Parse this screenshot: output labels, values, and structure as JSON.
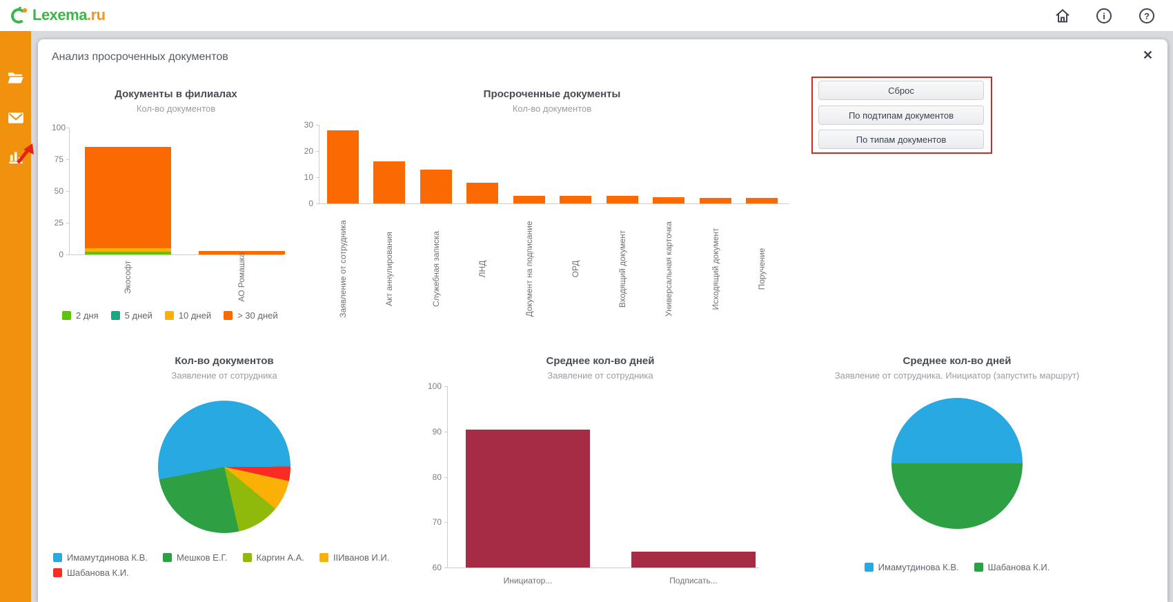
{
  "topbar": {
    "logo": {
      "text_primary": "Lexema",
      "text_suffix": ".ru"
    },
    "icons": {
      "info_glyph": "i",
      "help_glyph": "?"
    }
  },
  "sidebar": {
    "items": [
      "folder",
      "mail",
      "bar-chart"
    ]
  },
  "panel": {
    "title": "Анализ просроченных документов",
    "close_glyph": "✕"
  },
  "buttons": {
    "reset": "Сброс",
    "by_subtypes": "По подтипам документов",
    "by_types": "По типам документов"
  },
  "colors": {
    "sidebar_orange": "#f0920d",
    "bar_orange": "#fb6a02",
    "bar_maroon": "#a62c46",
    "pie_blue": "#29a9e1",
    "pie_green": "#2da044",
    "annotation_red": "#da251c",
    "logo_green": "#3db549",
    "logo_orange": "#f7941d"
  },
  "chart_data": [
    {
      "id": "branches",
      "type": "bar",
      "stacked": true,
      "title": "Документы в филиалах",
      "subtitle": "Кол-во документов",
      "categories": [
        "Экософт",
        "АО Ромашка"
      ],
      "series": [
        {
          "name": "2 дня",
          "color": "#5ec30d",
          "values": [
            2,
            0
          ]
        },
        {
          "name": "5 дней",
          "color": "#17a884",
          "values": [
            0,
            0
          ]
        },
        {
          "name": "10 дней",
          "color": "#fbb005",
          "values": [
            3,
            0
          ]
        },
        {
          "name": "> 30 дней",
          "color": "#fb6a02",
          "values": [
            80,
            2.5
          ]
        }
      ],
      "ylim": [
        0,
        100
      ],
      "yticks": [
        0,
        25,
        50,
        75,
        100
      ],
      "legend_position": "bottom"
    },
    {
      "id": "overdue",
      "type": "bar",
      "title": "Просроченные документы",
      "subtitle": "Кол-во документов",
      "categories": [
        "Заявление от сотрудника",
        "Акт аннулирования",
        "Служебная записка",
        "ЛНД",
        "Документ на подписание",
        "ОРД",
        "Входящий документ",
        "Универсальная карточка",
        "Исходящий документ",
        "Поручение"
      ],
      "values": [
        28,
        16,
        13,
        8,
        3,
        3,
        3,
        2.5,
        2,
        2
      ],
      "color": "#fb6a02",
      "ylim": [
        0,
        30
      ],
      "yticks": [
        0,
        10,
        20,
        30
      ]
    },
    {
      "id": "countpie",
      "type": "pie",
      "title": "Кол-во документов",
      "subtitle": "Заявление от сотрудника",
      "slices": [
        {
          "name": "Имамутдинова К.В.",
          "color": "#29a9e1",
          "value": 53
        },
        {
          "name": "Мешков Е.Г.",
          "color": "#2da044",
          "value": 25.5
        },
        {
          "name": "Каргин А.А.",
          "color": "#8fba0c",
          "value": 10.5
        },
        {
          "name": "IIИванов И.И.",
          "color": "#fbb005",
          "value": 7.5
        },
        {
          "name": "Шабанова К.И.",
          "color": "#f92b22",
          "value": 3.5
        }
      ],
      "draw": {
        "start_deg": 259,
        "order": [
          0,
          4,
          3,
          2,
          1
        ]
      },
      "legend_rows": [
        [
          0,
          1,
          2,
          3
        ],
        [
          4
        ]
      ]
    },
    {
      "id": "avgdays",
      "type": "bar",
      "title": "Среднее кол-во дней",
      "subtitle": "Заявление от сотрудника",
      "categories": [
        "Инициатор...",
        "Подписать..."
      ],
      "values": [
        90.4,
        63.5
      ],
      "color": "#a62c46",
      "ylim": [
        60,
        100
      ],
      "yticks": [
        60,
        70,
        80,
        90,
        100
      ]
    },
    {
      "id": "avgpie",
      "type": "pie",
      "title": "Среднее кол-во дней",
      "subtitle": "Заявление от сотрудника. Инициатор (запустить маршрут)",
      "slices": [
        {
          "name": "Имамутдинова К.В.",
          "color": "#29a9e1",
          "value": 50
        },
        {
          "name": "Шабанова К.И.",
          "color": "#2da044",
          "value": 50
        }
      ],
      "draw": {
        "start_deg": 270,
        "order": [
          0,
          1
        ]
      },
      "legend_rows": [
        [
          0,
          1
        ]
      ],
      "legend_centered": true
    }
  ]
}
